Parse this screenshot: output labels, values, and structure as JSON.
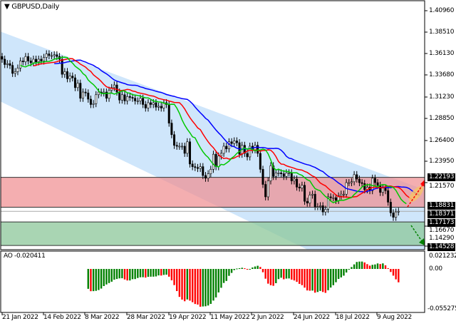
{
  "title": "GBPUSD,Daily",
  "colors": {
    "bull_candle": "#000000",
    "bear_candle": "#000000",
    "jaw": "#0000ff",
    "teeth": "#ff0000",
    "lips": "#00c800",
    "channel": "#cfe6fb",
    "resistance_zone": "#f08c8f",
    "support_zone": "#8cc79a",
    "ao_up": "#008000",
    "ao_down": "#ff0000"
  },
  "price_axis": [
    "1.40960",
    "1.38510",
    "1.36130",
    "1.33680",
    "1.31230",
    "1.28850",
    "1.26400",
    "1.23950",
    "1.21570",
    "1.16670",
    "1.14290"
  ],
  "price_tags": [
    "1.22193",
    "1.18831",
    "1.18371",
    "1.17173",
    "1.14528"
  ],
  "ao": {
    "label": "AO -0.020411",
    "axis": [
      "0.021232",
      "0.00",
      "-0.055275"
    ]
  },
  "date_axis": [
    "21 Jan 2022",
    "14 Feb 2022",
    "8 Mar 2022",
    "28 Mar 2022",
    "19 Apr 2022",
    "11 May 2022",
    "2 Jun 2022",
    "24 Jun 2022",
    "18 Jul 2022",
    "9 Aug 2022"
  ],
  "chart_data": {
    "type": "candlestick",
    "symbol": "GBPUSD",
    "timeframe": "Daily",
    "x_range": [
      "21 Jan 2022",
      "Aug 2022"
    ],
    "ylim": [
      1.1429,
      1.4096
    ],
    "closes": [
      1.355,
      1.349,
      1.35,
      1.348,
      1.339,
      1.341,
      1.345,
      1.353,
      1.352,
      1.358,
      1.353,
      1.351,
      1.355,
      1.352,
      1.355,
      1.353,
      1.357,
      1.361,
      1.359,
      1.359,
      1.36,
      1.358,
      1.355,
      1.338,
      1.341,
      1.333,
      1.336,
      1.334,
      1.323,
      1.328,
      1.311,
      1.318,
      1.317,
      1.31,
      1.304,
      1.305,
      1.315,
      1.318,
      1.317,
      1.318,
      1.311,
      1.32,
      1.323,
      1.326,
      1.318,
      1.309,
      1.315,
      1.308,
      1.313,
      1.312,
      1.311,
      1.308,
      1.308,
      1.311,
      1.304,
      1.3,
      1.306,
      1.304,
      1.306,
      1.301,
      1.302,
      1.3,
      1.306,
      1.304,
      1.283,
      1.27,
      1.258,
      1.257,
      1.257,
      1.257,
      1.249,
      1.262,
      1.237,
      1.234,
      1.233,
      1.232,
      1.234,
      1.224,
      1.221,
      1.226,
      1.231,
      1.248,
      1.234,
      1.246,
      1.249,
      1.257,
      1.254,
      1.262,
      1.26,
      1.263,
      1.261,
      1.248,
      1.258,
      1.249,
      1.245,
      1.257,
      1.253,
      1.258,
      1.249,
      1.231,
      1.214,
      1.2,
      1.218,
      1.235,
      1.223,
      1.227,
      1.227,
      1.226,
      1.223,
      1.227,
      1.227,
      1.218,
      1.22,
      1.211,
      1.21,
      1.213,
      1.195,
      1.193,
      1.202,
      1.203,
      1.189,
      1.189,
      1.19,
      1.183,
      1.186,
      1.2,
      1.199,
      1.199,
      1.196,
      1.201,
      1.203,
      1.203,
      1.216,
      1.216,
      1.217,
      1.225,
      1.22,
      1.216,
      1.215,
      1.208,
      1.211,
      1.207,
      1.221,
      1.216,
      1.213,
      1.205,
      1.21,
      1.207,
      1.194,
      1.182,
      1.177,
      1.183,
      1.1837
    ],
    "levels": {
      "resistance_zone": [
        1.18831,
        1.22193
      ],
      "support_zone": [
        1.14528,
        1.17173
      ],
      "current": 1.18371
    },
    "indicators": [
      "Alligator",
      "AO"
    ]
  }
}
